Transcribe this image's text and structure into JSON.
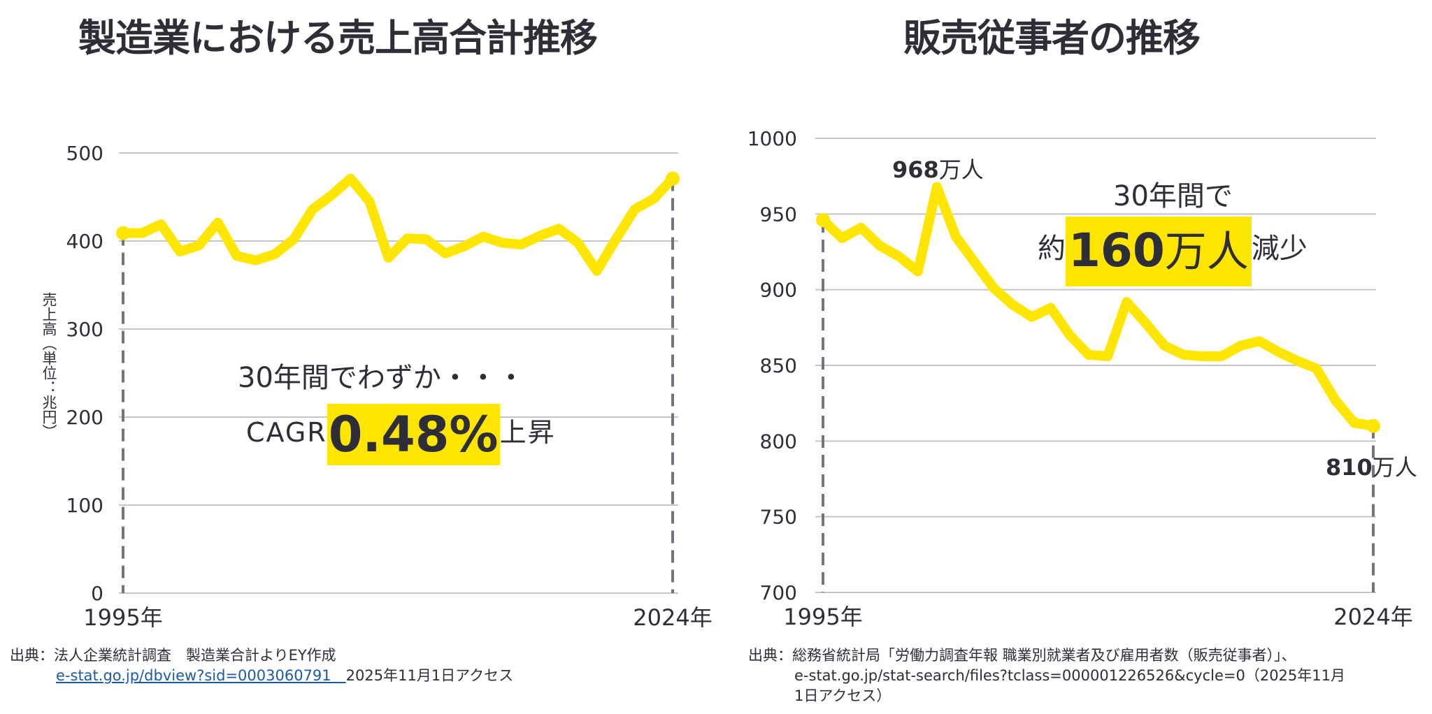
{
  "left": {
    "title": "製造業における売上高合計推移",
    "ylabel": "売上高（単位：兆円）",
    "annotation_line1": "30年間でわずか・・・",
    "annotation_prefix": "CAGR",
    "annotation_value": "0.48%",
    "annotation_suffix": "上昇",
    "source_line1": "出典：法人企業統計調査　製造業合計よりEY作成",
    "source_link": "e-stat.go.jp/dbview?sid=0003060791　",
    "source_access": "2025年11月1日アクセス"
  },
  "right": {
    "title": "販売従事者の推移",
    "annotation_line1": "30年間で",
    "annotation_prefix": "約",
    "annotation_value": "160",
    "annotation_unit": "万人",
    "annotation_suffix": "減少",
    "peak_value": "968",
    "peak_unit": "万人",
    "end_value": "810",
    "end_unit": "万人",
    "source_line1": "出典：総務省統計局「労働力調査年報 職業別就業者及び雇用者数（販売従事者）」、",
    "source_line2": "e-stat.go.jp/stat-search/files?tclass=000001226526&cycle=0（2025年11月",
    "source_line3": "1日アクセス）"
  },
  "colors": {
    "accent": "#ffe600",
    "text": "#2e2e38",
    "grid": "#c4c4cd",
    "dash": "#747480"
  },
  "chart_data": [
    {
      "type": "line",
      "title": "製造業における売上高合計推移",
      "xlabel": "",
      "ylabel": "売上高（単位：兆円）",
      "x": [
        1995,
        1996,
        1997,
        1998,
        1999,
        2000,
        2001,
        2002,
        2003,
        2004,
        2005,
        2006,
        2007,
        2008,
        2009,
        2010,
        2011,
        2012,
        2013,
        2014,
        2015,
        2016,
        2017,
        2018,
        2019,
        2020,
        2021,
        2022,
        2023,
        2024
      ],
      "x_tick_labels": [
        "1995年",
        "2024年"
      ],
      "yticks": [
        0,
        100,
        200,
        300,
        400,
        500
      ],
      "ylim": [
        0,
        500
      ],
      "grid": true,
      "legend": "none",
      "series": [
        {
          "name": "売上高",
          "values": [
            409,
            409,
            419,
            388,
            395,
            421,
            383,
            378,
            385,
            402,
            436,
            452,
            471,
            445,
            381,
            403,
            402,
            386,
            394,
            405,
            398,
            396,
            406,
            414,
            398,
            366,
            402,
            436,
            448,
            471
          ]
        }
      ],
      "annotations": [
        "30年間でわずか・・・",
        "CAGR 0.48% 上昇"
      ]
    },
    {
      "type": "line",
      "title": "販売従事者の推移",
      "xlabel": "",
      "ylabel": "",
      "x": [
        1995,
        1996,
        1997,
        1998,
        1999,
        2000,
        2001,
        2002,
        2003,
        2004,
        2005,
        2006,
        2007,
        2008,
        2009,
        2010,
        2011,
        2012,
        2013,
        2014,
        2015,
        2016,
        2017,
        2018,
        2019,
        2020,
        2021,
        2022,
        2023,
        2024
      ],
      "x_tick_labels": [
        "1995年",
        "2024年"
      ],
      "yticks": [
        700,
        750,
        800,
        850,
        900,
        950,
        1000
      ],
      "ylim": [
        700,
        1000
      ],
      "grid": true,
      "legend": "none",
      "series": [
        {
          "name": "販売従事者（万人）",
          "values": [
            946,
            934,
            941,
            929,
            922,
            912,
            968,
            935,
            918,
            901,
            890,
            882,
            888,
            870,
            857,
            856,
            892,
            878,
            863,
            857,
            856,
            856,
            863,
            866,
            859,
            853,
            848,
            827,
            812,
            810
          ]
        }
      ],
      "annotations": [
        "968万人",
        "810万人",
        "30年間で 約160万人減少"
      ]
    }
  ]
}
